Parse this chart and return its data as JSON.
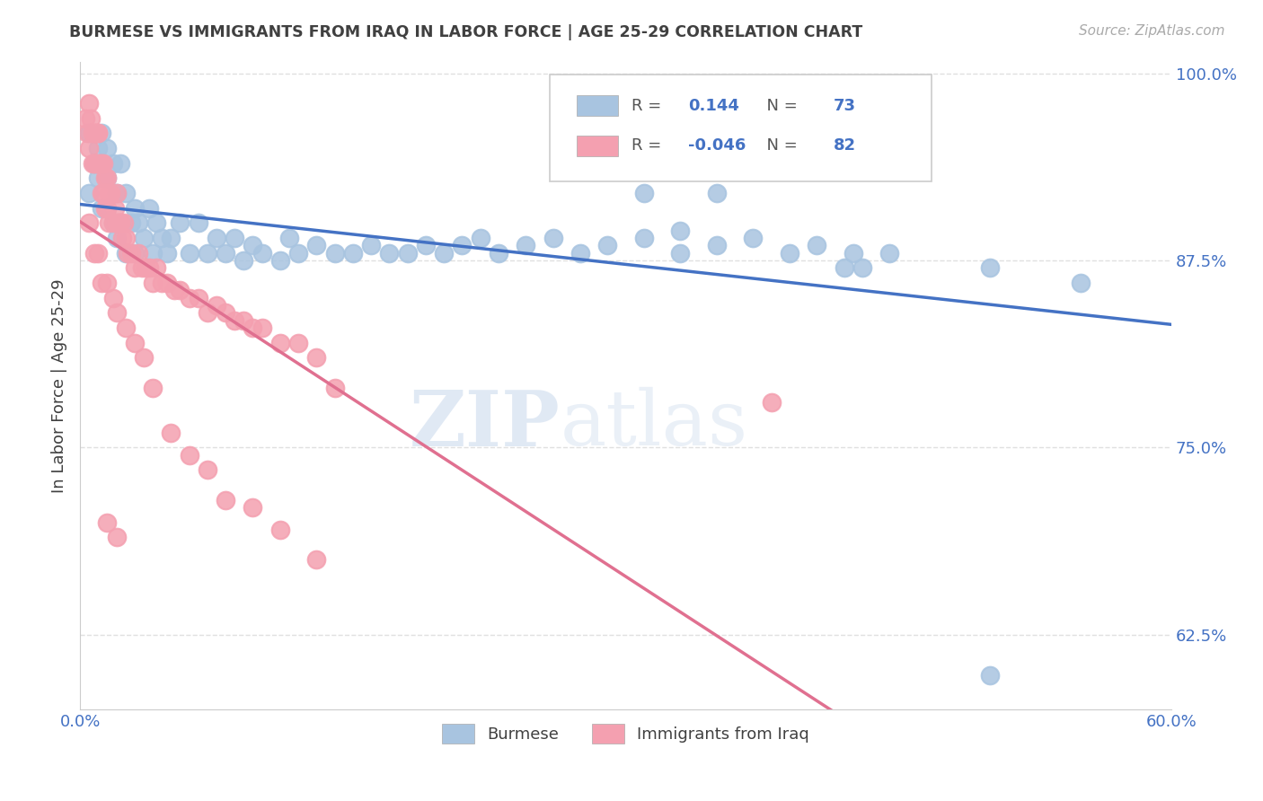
{
  "title": "BURMESE VS IMMIGRANTS FROM IRAQ IN LABOR FORCE | AGE 25-29 CORRELATION CHART",
  "source": "Source: ZipAtlas.com",
  "ylabel": "In Labor Force | Age 25-29",
  "xlim": [
    0.0,
    0.6
  ],
  "ylim": [
    0.575,
    1.008
  ],
  "yticks": [
    0.625,
    0.75,
    0.875,
    1.0
  ],
  "ytick_labels": [
    "62.5%",
    "75.0%",
    "87.5%",
    "100.0%"
  ],
  "burmese_color": "#a8c4e0",
  "burmese_edge": "#7aaad0",
  "iraq_color": "#f4a0b0",
  "iraq_edge": "#e07090",
  "blue_line_color": "#4472c4",
  "pink_line_color": "#e07090",
  "legend_R1": "0.144",
  "legend_N1": "73",
  "legend_R2": "-0.046",
  "legend_N2": "82",
  "legend_label1": "Burmese",
  "legend_label2": "Immigrants from Iraq",
  "watermark_zip": "ZIP",
  "watermark_atlas": "atlas",
  "background_color": "#ffffff",
  "title_color": "#404040",
  "axis_color": "#4472c4",
  "grid_color": "#e0e0e0",
  "burmese_x": [
    0.005,
    0.005,
    0.008,
    0.01,
    0.01,
    0.012,
    0.012,
    0.015,
    0.015,
    0.015,
    0.018,
    0.018,
    0.02,
    0.02,
    0.022,
    0.022,
    0.025,
    0.025,
    0.028,
    0.03,
    0.03,
    0.032,
    0.035,
    0.038,
    0.04,
    0.042,
    0.045,
    0.048,
    0.05,
    0.055,
    0.06,
    0.065,
    0.07,
    0.075,
    0.08,
    0.085,
    0.09,
    0.095,
    0.1,
    0.11,
    0.115,
    0.12,
    0.13,
    0.14,
    0.15,
    0.16,
    0.17,
    0.18,
    0.19,
    0.2,
    0.21,
    0.22,
    0.23,
    0.245,
    0.26,
    0.275,
    0.29,
    0.31,
    0.33,
    0.35,
    0.37,
    0.39,
    0.405,
    0.425,
    0.445,
    0.31,
    0.33,
    0.35,
    0.42,
    0.43,
    0.5,
    0.55,
    0.5
  ],
  "burmese_y": [
    0.92,
    0.96,
    0.94,
    0.93,
    0.95,
    0.91,
    0.96,
    0.91,
    0.93,
    0.95,
    0.9,
    0.94,
    0.89,
    0.92,
    0.9,
    0.94,
    0.88,
    0.92,
    0.9,
    0.88,
    0.91,
    0.9,
    0.89,
    0.91,
    0.88,
    0.9,
    0.89,
    0.88,
    0.89,
    0.9,
    0.88,
    0.9,
    0.88,
    0.89,
    0.88,
    0.89,
    0.875,
    0.885,
    0.88,
    0.875,
    0.89,
    0.88,
    0.885,
    0.88,
    0.88,
    0.885,
    0.88,
    0.88,
    0.885,
    0.88,
    0.885,
    0.89,
    0.88,
    0.885,
    0.89,
    0.88,
    0.885,
    0.89,
    0.88,
    0.885,
    0.89,
    0.88,
    0.885,
    0.88,
    0.88,
    0.92,
    0.895,
    0.92,
    0.87,
    0.87,
    0.87,
    0.86,
    0.598
  ],
  "iraq_x": [
    0.003,
    0.004,
    0.005,
    0.005,
    0.006,
    0.007,
    0.007,
    0.008,
    0.008,
    0.009,
    0.009,
    0.01,
    0.01,
    0.01,
    0.011,
    0.012,
    0.012,
    0.013,
    0.013,
    0.014,
    0.014,
    0.015,
    0.015,
    0.016,
    0.016,
    0.017,
    0.018,
    0.019,
    0.02,
    0.02,
    0.021,
    0.022,
    0.023,
    0.024,
    0.025,
    0.026,
    0.028,
    0.03,
    0.032,
    0.034,
    0.036,
    0.038,
    0.04,
    0.042,
    0.045,
    0.048,
    0.052,
    0.055,
    0.06,
    0.065,
    0.07,
    0.075,
    0.08,
    0.085,
    0.09,
    0.095,
    0.1,
    0.11,
    0.12,
    0.13,
    0.14,
    0.005,
    0.008,
    0.01,
    0.012,
    0.015,
    0.018,
    0.02,
    0.025,
    0.03,
    0.035,
    0.04,
    0.05,
    0.06,
    0.07,
    0.08,
    0.095,
    0.11,
    0.13,
    0.015,
    0.02,
    0.38
  ],
  "iraq_y": [
    0.97,
    0.96,
    0.98,
    0.95,
    0.97,
    0.96,
    0.94,
    0.96,
    0.94,
    0.96,
    0.94,
    0.96,
    0.94,
    0.96,
    0.94,
    0.94,
    0.92,
    0.94,
    0.92,
    0.93,
    0.91,
    0.93,
    0.91,
    0.92,
    0.9,
    0.92,
    0.9,
    0.91,
    0.9,
    0.92,
    0.9,
    0.9,
    0.89,
    0.9,
    0.89,
    0.88,
    0.88,
    0.87,
    0.88,
    0.87,
    0.87,
    0.87,
    0.86,
    0.87,
    0.86,
    0.86,
    0.855,
    0.855,
    0.85,
    0.85,
    0.84,
    0.845,
    0.84,
    0.835,
    0.835,
    0.83,
    0.83,
    0.82,
    0.82,
    0.81,
    0.79,
    0.9,
    0.88,
    0.88,
    0.86,
    0.86,
    0.85,
    0.84,
    0.83,
    0.82,
    0.81,
    0.79,
    0.76,
    0.745,
    0.735,
    0.715,
    0.71,
    0.695,
    0.675,
    0.7,
    0.69,
    0.78
  ]
}
